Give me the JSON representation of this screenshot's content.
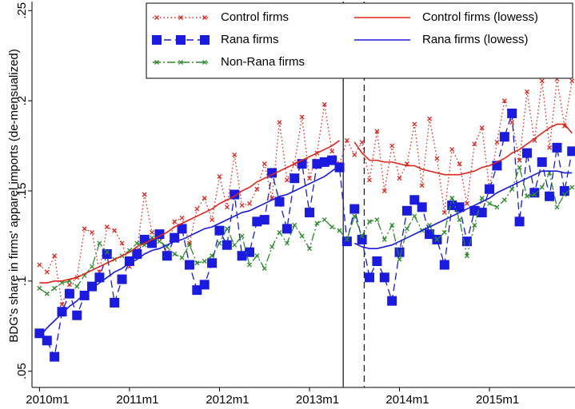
{
  "chart_data": {
    "type": "line",
    "y_label": "BDG's share in firms' apparel imports (de-mensualized)",
    "x": [
      0,
      1,
      2,
      3,
      4,
      5,
      6,
      7,
      8,
      9,
      10,
      11,
      12,
      13,
      14,
      15,
      16,
      17,
      18,
      19,
      20,
      21,
      22,
      23,
      24,
      25,
      26,
      27,
      28,
      29,
      30,
      31,
      32,
      33,
      34,
      35,
      36,
      37,
      38,
      39,
      40,
      41,
      42,
      43,
      44,
      45,
      46,
      47,
      48,
      49,
      50,
      51,
      52,
      53,
      54,
      55,
      56,
      57,
      58,
      59,
      60,
      61,
      62,
      63,
      64,
      65,
      66,
      67,
      68,
      69,
      70,
      71
    ],
    "xlim": [
      -1,
      71.4
    ],
    "xticks": [
      {
        "value": 0,
        "label": "2010m1"
      },
      {
        "value": 12,
        "label": "2011m1"
      },
      {
        "value": 24,
        "label": "2012m1"
      },
      {
        "value": 36,
        "label": "2013m1"
      },
      {
        "value": 48,
        "label": "2014m1"
      },
      {
        "value": 60,
        "label": "2015m1"
      }
    ],
    "ylim": [
      0.041,
      0.255
    ],
    "yticks": [
      {
        "value": 0.05,
        "label": ".05"
      },
      {
        "value": 0.1,
        "label": ".1"
      },
      {
        "value": 0.15,
        "label": ".15"
      },
      {
        "value": 0.2,
        "label": ".2"
      },
      {
        "value": 0.25,
        "label": ".25"
      }
    ],
    "vlines": [
      {
        "x": 40.5,
        "dashed": false
      },
      {
        "x": 43.3,
        "dashed": true
      }
    ],
    "series": [
      {
        "name": "Control firms",
        "color": "#e0251b",
        "style": "dotted",
        "marker": "x",
        "values": [
          0.109,
          0.105,
          0.114,
          0.087,
          0.098,
          0.102,
          0.129,
          0.127,
          0.105,
          0.13,
          0.128,
          0.121,
          0.108,
          0.117,
          0.148,
          0.127,
          0.124,
          0.116,
          0.133,
          0.135,
          0.121,
          0.14,
          0.146,
          0.134,
          0.158,
          0.141,
          0.17,
          0.142,
          0.143,
          0.151,
          0.165,
          0.146,
          0.188,
          0.156,
          0.165,
          0.191,
          0.157,
          0.171,
          0.198,
          0.172,
          0.165,
          0.178,
          0.17,
          0.177,
          0.156,
          0.183,
          0.15,
          0.175,
          0.157,
          0.165,
          0.187,
          0.153,
          0.19,
          0.168,
          0.138,
          0.173,
          0.165,
          0.143,
          0.176,
          0.185,
          0.151,
          0.177,
          0.2,
          0.188,
          0.167,
          0.205,
          0.178,
          0.211,
          0.174,
          0.212,
          0.186,
          0.211
        ]
      },
      {
        "name": "Rana firms",
        "color": "#1a1ae0",
        "style": "dashed",
        "marker": "square",
        "values": [
          0.071,
          0.067,
          0.058,
          0.083,
          0.093,
          0.081,
          0.092,
          0.097,
          0.102,
          0.115,
          0.088,
          0.101,
          0.111,
          0.115,
          0.123,
          0.121,
          0.126,
          0.114,
          0.124,
          0.129,
          0.109,
          0.095,
          0.098,
          0.11,
          0.128,
          0.12,
          0.148,
          0.114,
          0.116,
          0.133,
          0.134,
          0.16,
          0.144,
          0.129,
          0.157,
          0.165,
          0.138,
          0.165,
          0.166,
          0.167,
          0.163,
          0.122,
          0.14,
          0.123,
          0.102,
          0.111,
          0.102,
          0.089,
          0.116,
          0.139,
          0.145,
          0.141,
          0.126,
          0.123,
          0.109,
          0.142,
          0.141,
          0.122,
          0.139,
          0.138,
          0.151,
          0.164,
          0.18,
          0.193,
          0.133,
          0.171,
          0.149,
          0.166,
          0.147,
          0.174,
          0.15,
          0.172
        ]
      },
      {
        "name": "Non-Rana firms",
        "color": "#2a8a2a",
        "style": "dashdot",
        "marker": "x",
        "values": [
          0.096,
          0.093,
          0.096,
          0.099,
          0.1,
          0.097,
          0.103,
          0.108,
          0.121,
          0.116,
          0.112,
          0.114,
          0.117,
          0.121,
          0.12,
          0.124,
          0.122,
          0.119,
          0.115,
          0.113,
          0.12,
          0.11,
          0.111,
          0.114,
          0.121,
          0.129,
          0.12,
          0.125,
          0.109,
          0.114,
          0.107,
          0.119,
          0.127,
          0.121,
          0.131,
          0.125,
          0.118,
          0.132,
          0.134,
          0.13,
          0.128,
          0.123,
          0.136,
          0.125,
          0.133,
          0.134,
          0.123,
          0.131,
          0.112,
          0.129,
          0.136,
          0.128,
          0.131,
          0.123,
          0.127,
          0.146,
          0.134,
          0.114,
          0.131,
          0.146,
          0.143,
          0.141,
          0.145,
          0.151,
          0.163,
          0.147,
          0.148,
          0.152,
          0.16,
          0.141,
          0.148,
          0.152
        ]
      },
      {
        "name": "Control firms (lowess)",
        "color": "#e0251b",
        "style": "solid",
        "marker": "none",
        "values": [
          0.099,
          0.099,
          0.1,
          0.1,
          0.101,
          0.102,
          0.104,
          0.106,
          0.108,
          0.11,
          0.112,
          0.114,
          0.116,
          0.119,
          0.121,
          0.123,
          0.125,
          0.127,
          0.13,
          0.132,
          0.134,
          0.136,
          0.138,
          0.14,
          0.143,
          0.145,
          0.147,
          0.15,
          0.152,
          0.155,
          0.157,
          0.159,
          0.161,
          0.163,
          0.165,
          0.167,
          0.169,
          0.171,
          0.173,
          0.175,
          0.178,
          null,
          0.177,
          0.171,
          0.167,
          0.167,
          0.166,
          0.166,
          0.165,
          0.164,
          0.164,
          0.162,
          0.161,
          0.16,
          0.159,
          0.159,
          0.159,
          0.16,
          0.161,
          0.163,
          0.164,
          0.166,
          0.168,
          0.171,
          0.173,
          0.176,
          0.179,
          0.182,
          0.185,
          0.187,
          0.187,
          0.182
        ]
      },
      {
        "name": "Rana firms (lowess)",
        "color": "#1a1ae0",
        "style": "solid",
        "marker": "none",
        "values": [
          0.069,
          0.074,
          0.078,
          0.082,
          0.086,
          0.089,
          0.093,
          0.096,
          0.099,
          0.102,
          0.105,
          0.107,
          0.11,
          0.112,
          0.115,
          0.117,
          0.118,
          0.12,
          0.122,
          0.123,
          0.125,
          0.127,
          0.129,
          0.13,
          0.132,
          0.134,
          0.136,
          0.138,
          0.139,
          0.141,
          0.143,
          0.145,
          0.147,
          0.148,
          0.15,
          0.152,
          0.154,
          0.156,
          0.158,
          0.161,
          0.164,
          null,
          0.121,
          0.119,
          0.118,
          0.118,
          0.119,
          0.12,
          0.122,
          0.124,
          0.126,
          0.128,
          0.13,
          0.132,
          0.134,
          0.136,
          0.138,
          0.14,
          0.142,
          0.144,
          0.146,
          0.149,
          0.151,
          0.153,
          0.155,
          0.157,
          0.159,
          0.161,
          0.161,
          0.161,
          0.16,
          0.16
        ]
      }
    ],
    "legend_position": "top-right"
  }
}
